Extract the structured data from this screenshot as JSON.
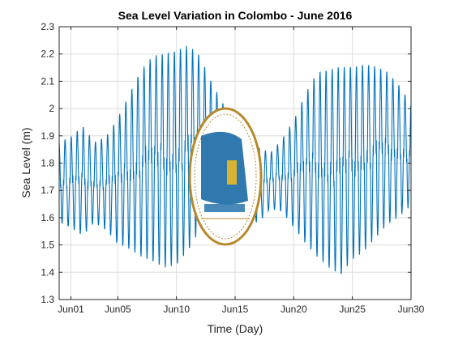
{
  "chart_data": {
    "type": "line",
    "title": "Sea Level Variation in Colombo - June 2016",
    "xlabel": "Time (Day)",
    "ylabel": "Sea Level (m)",
    "xlim": [
      "2016-05-31",
      "2016-06-30"
    ],
    "ylim": [
      1.3,
      2.3
    ],
    "grid": true,
    "x_ticks": [
      "Jun01",
      "Jun05",
      "Jun10",
      "Jun15",
      "Jun20",
      "Jun25",
      "Jun30"
    ],
    "y_ticks": [
      "1.3",
      "1.4",
      "1.5",
      "1.6",
      "1.7",
      "1.8",
      "1.9",
      "2",
      "2.1",
      "2.2",
      "2.3"
    ],
    "series": [
      {
        "color": "#0072bd",
        "cycle": "semidiurnal, about two highs and two lows per day",
        "daily": [
          {
            "date": "2016-05-31",
            "high": 1.88,
            "low": 1.58
          },
          {
            "date": "2016-06-01",
            "high": 1.9,
            "low": 1.56
          },
          {
            "date": "2016-06-02",
            "high": 1.94,
            "low": 1.53
          },
          {
            "date": "2016-06-03",
            "high": 1.88,
            "low": 1.58
          },
          {
            "date": "2016-06-04",
            "high": 1.9,
            "low": 1.55
          },
          {
            "date": "2016-06-05",
            "high": 1.97,
            "low": 1.5
          },
          {
            "date": "2016-06-06",
            "high": 2.06,
            "low": 1.48
          },
          {
            "date": "2016-06-07",
            "high": 2.15,
            "low": 1.45
          },
          {
            "date": "2016-06-08",
            "high": 2.2,
            "low": 1.43
          },
          {
            "date": "2016-06-09",
            "high": 2.21,
            "low": 1.41
          },
          {
            "date": "2016-06-10",
            "high": 2.22,
            "low": 1.42
          },
          {
            "date": "2016-06-11",
            "high": 2.24,
            "low": 1.47
          },
          {
            "date": "2016-06-12",
            "high": 2.2,
            "low": 1.55
          },
          {
            "date": "2016-06-13",
            "high": 2.1,
            "low": 1.6
          },
          {
            "date": "2016-06-14",
            "high": 2.02,
            "low": 1.62
          },
          {
            "date": "2016-06-15",
            "high": 1.96,
            "low": 1.61
          },
          {
            "date": "2016-06-16",
            "high": 1.9,
            "low": 1.58
          },
          {
            "date": "2016-06-17",
            "high": 1.86,
            "low": 1.58
          },
          {
            "date": "2016-06-18",
            "high": 1.84,
            "low": 1.63
          },
          {
            "date": "2016-06-19",
            "high": 1.89,
            "low": 1.62
          },
          {
            "date": "2016-06-20",
            "high": 1.96,
            "low": 1.56
          },
          {
            "date": "2016-06-21",
            "high": 2.06,
            "low": 1.5
          },
          {
            "date": "2016-06-22",
            "high": 2.14,
            "low": 1.45
          },
          {
            "date": "2016-06-23",
            "high": 2.15,
            "low": 1.41
          },
          {
            "date": "2016-06-24",
            "high": 2.16,
            "low": 1.38
          },
          {
            "date": "2016-06-25",
            "high": 2.16,
            "low": 1.44
          },
          {
            "date": "2016-06-26",
            "high": 2.17,
            "low": 1.47
          },
          {
            "date": "2016-06-27",
            "high": 2.16,
            "low": 1.52
          },
          {
            "date": "2016-06-28",
            "high": 2.14,
            "low": 1.57
          },
          {
            "date": "2016-06-29",
            "high": 2.09,
            "low": 1.6
          },
          {
            "date": "2016-06-30",
            "high": 2.02,
            "low": 1.64
          }
        ]
      }
    ]
  },
  "logo": {
    "name": "seal-emblem-icon",
    "ring_color": "#b8892c",
    "blue_color": "#1a6aa6",
    "gold_color": "#d8b231"
  }
}
